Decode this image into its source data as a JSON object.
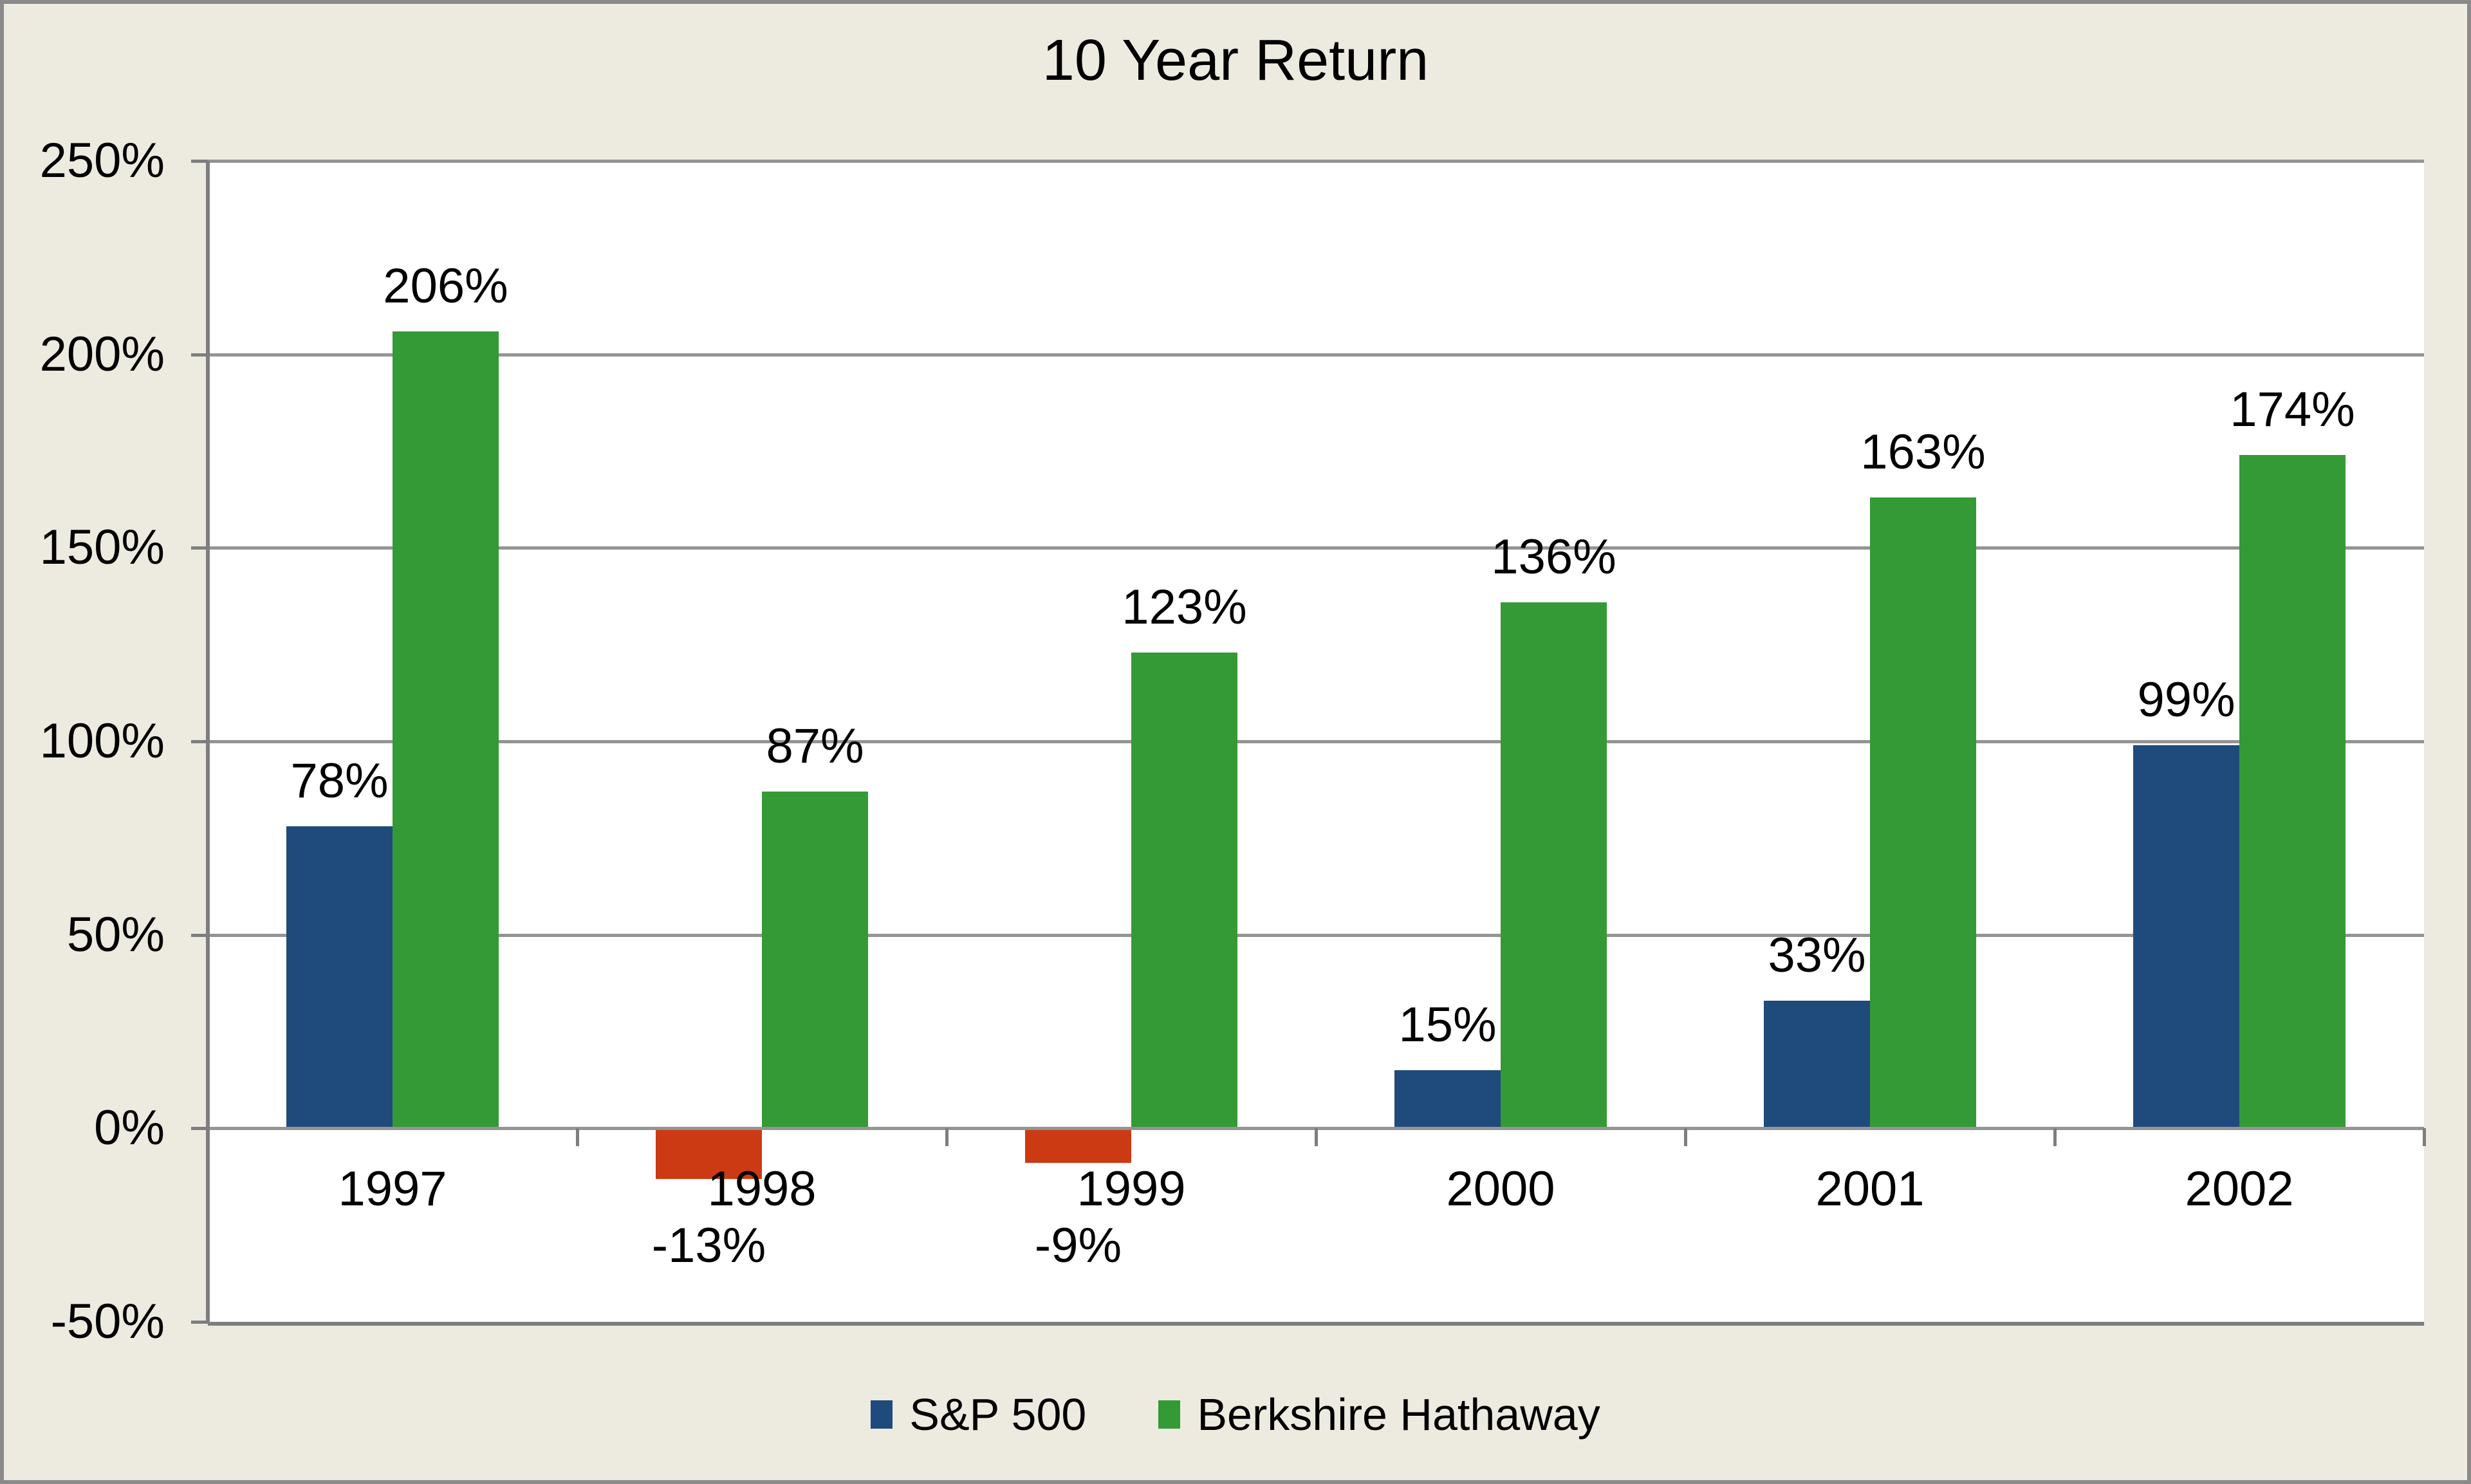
{
  "chart_data": {
    "type": "bar",
    "title": "10 Year Return",
    "categories": [
      "1997",
      "1998",
      "1999",
      "2000",
      "2001",
      "2002"
    ],
    "series": [
      {
        "name": "S&P 500",
        "values": [
          78,
          -13,
          -9,
          15,
          33,
          99
        ],
        "labels": [
          "78%",
          "-13%",
          "-9%",
          "15%",
          "33%",
          "99%"
        ],
        "color": "#1f4a7c",
        "negative_color": "#cb3a13"
      },
      {
        "name": "Berkshire Hathaway",
        "values": [
          206,
          87,
          123,
          136,
          163,
          174
        ],
        "labels": [
          "206%",
          "87%",
          "123%",
          "136%",
          "163%",
          "174%"
        ],
        "color": "#349a35"
      }
    ],
    "ylim": [
      -50,
      250
    ],
    "ytick_step": 50,
    "yticks": [
      250,
      200,
      150,
      100,
      50,
      0,
      -50
    ],
    "ytick_labels": [
      "250%",
      "200%",
      "150%",
      "100%",
      "50%",
      "0%",
      "-50%"
    ],
    "xlabel": "",
    "ylabel": "",
    "grid": true,
    "legend_position": "bottom"
  },
  "colors": {
    "background": "#edeae0",
    "plot_background": "#ffffff",
    "outer_border": "#8a8a8a",
    "gridline": "#949494",
    "axis_line": "#7e7e7e",
    "text": "#000000"
  }
}
